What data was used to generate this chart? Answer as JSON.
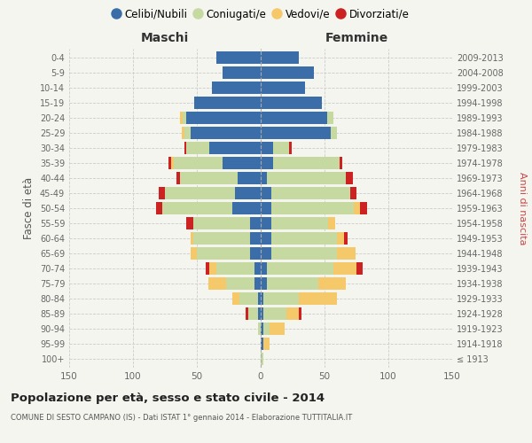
{
  "age_groups": [
    "100+",
    "95-99",
    "90-94",
    "85-89",
    "80-84",
    "75-79",
    "70-74",
    "65-69",
    "60-64",
    "55-59",
    "50-54",
    "45-49",
    "40-44",
    "35-39",
    "30-34",
    "25-29",
    "20-24",
    "15-19",
    "10-14",
    "5-9",
    "0-4"
  ],
  "birth_years": [
    "≤ 1913",
    "1914-1918",
    "1919-1923",
    "1924-1928",
    "1929-1933",
    "1934-1938",
    "1939-1943",
    "1944-1948",
    "1949-1953",
    "1954-1958",
    "1959-1963",
    "1964-1968",
    "1969-1973",
    "1974-1978",
    "1979-1983",
    "1984-1988",
    "1989-1993",
    "1994-1998",
    "1999-2003",
    "2004-2008",
    "2009-2013"
  ],
  "maschi": {
    "celibe": [
      0,
      0,
      0,
      2,
      2,
      5,
      5,
      8,
      8,
      8,
      22,
      20,
      18,
      30,
      40,
      55,
      58,
      52,
      38,
      30,
      35
    ],
    "coniugato": [
      0,
      0,
      2,
      8,
      15,
      22,
      30,
      42,
      45,
      45,
      55,
      55,
      45,
      38,
      18,
      5,
      3,
      0,
      0,
      0,
      0
    ],
    "vedovo": [
      0,
      0,
      0,
      0,
      5,
      14,
      5,
      5,
      2,
      0,
      0,
      0,
      0,
      2,
      0,
      2,
      2,
      0,
      0,
      0,
      0
    ],
    "divorziato": [
      0,
      0,
      0,
      2,
      0,
      0,
      3,
      0,
      0,
      5,
      5,
      5,
      3,
      2,
      2,
      0,
      0,
      0,
      0,
      0,
      0
    ]
  },
  "femmine": {
    "nubile": [
      0,
      2,
      2,
      2,
      2,
      5,
      5,
      8,
      8,
      8,
      8,
      8,
      5,
      10,
      10,
      55,
      52,
      48,
      35,
      42,
      30
    ],
    "coniugata": [
      2,
      0,
      5,
      18,
      28,
      40,
      52,
      52,
      52,
      45,
      65,
      62,
      62,
      52,
      12,
      5,
      5,
      0,
      0,
      0,
      0
    ],
    "vedova": [
      0,
      5,
      12,
      10,
      30,
      22,
      18,
      14,
      5,
      5,
      5,
      0,
      0,
      0,
      0,
      0,
      0,
      0,
      0,
      0,
      0
    ],
    "divorziata": [
      0,
      0,
      0,
      2,
      0,
      0,
      5,
      0,
      3,
      0,
      5,
      5,
      5,
      2,
      2,
      0,
      0,
      0,
      0,
      0,
      0
    ]
  },
  "colors": {
    "celibe": "#3B6EA8",
    "coniugato": "#C5D9A0",
    "vedovo": "#F5C96A",
    "divorziato": "#CC2222"
  },
  "legend_labels": [
    "Celibi/Nubili",
    "Coniugati/e",
    "Vedovi/e",
    "Divorziati/e"
  ],
  "maschi_label": "Maschi",
  "femmine_label": "Femmine",
  "ylabel_left": "Fasce di età",
  "ylabel_right": "Anni di nascita",
  "title": "Popolazione per età, sesso e stato civile - 2014",
  "subtitle": "COMUNE DI SESTO CAMPANO (IS) - Dati ISTAT 1° gennaio 2014 - Elaborazione TUTTITALIA.IT",
  "xlim": 150,
  "bg_color": "#f5f5f0",
  "grid_color": "#cccccc"
}
